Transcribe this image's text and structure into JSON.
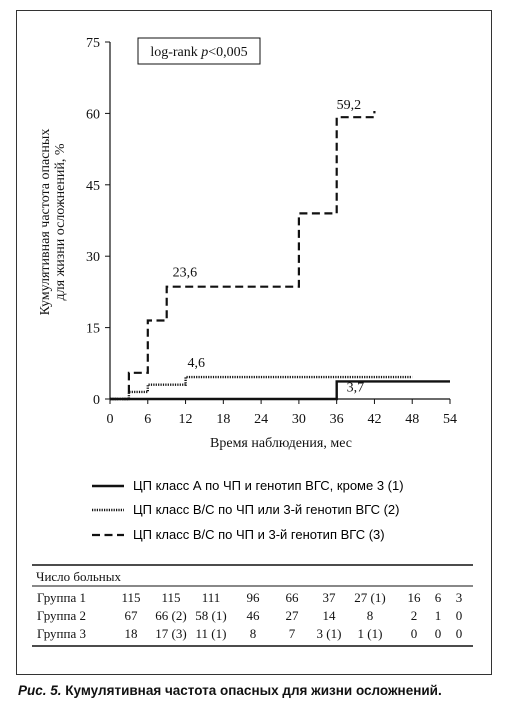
{
  "chart_data": {
    "type": "line",
    "step": true,
    "xlabel": "Время наблюдения, мес",
    "ylabel_line1": "Кумулятивная частота опасных",
    "ylabel_line2": "для жизни осложнений, %",
    "xlim": [
      0,
      54
    ],
    "ylim": [
      0,
      75
    ],
    "xticks": [
      "0",
      "6",
      "12",
      "18",
      "24",
      "30",
      "36",
      "42",
      "48",
      "54"
    ],
    "yticks": [
      "0",
      "15",
      "30",
      "45",
      "60",
      "75"
    ],
    "annotation": "log-rank p<0,005",
    "annotation_prefix": "log-rank ",
    "annotation_p": "p",
    "annotation_suffix": "<0,005",
    "series": [
      {
        "name": "ЦП класс А по ЧП и генотип ВГС, кроме 3 (1)",
        "style": "solid",
        "points": [
          [
            0,
            0
          ],
          [
            36,
            0
          ],
          [
            36,
            3.7
          ],
          [
            54,
            3.7
          ]
        ]
      },
      {
        "name": "ЦП класс В/С по ЧП или 3-й генотип ВГС (2)",
        "style": "dotted",
        "points": [
          [
            0,
            0
          ],
          [
            3,
            0
          ],
          [
            3,
            1.5
          ],
          [
            6,
            1.5
          ],
          [
            6,
            3
          ],
          [
            12,
            3
          ],
          [
            12,
            4.6
          ],
          [
            48,
            4.6
          ]
        ]
      },
      {
        "name": "ЦП класс В/С по ЧП и 3-й генотип ВГС (3)",
        "style": "dashed",
        "points": [
          [
            0,
            0
          ],
          [
            3,
            0
          ],
          [
            3,
            5.5
          ],
          [
            6,
            5.5
          ],
          [
            6,
            16.5
          ],
          [
            9,
            16.5
          ],
          [
            9,
            23.6
          ],
          [
            30,
            23.6
          ],
          [
            30,
            39
          ],
          [
            36,
            39
          ],
          [
            36,
            59.2
          ],
          [
            42,
            59.2
          ],
          [
            42,
            60.5
          ]
        ]
      }
    ],
    "data_labels": [
      {
        "text": "59,2",
        "x": 36,
        "y": 59.2
      },
      {
        "text": "23,6",
        "x": 9,
        "y": 23.6
      },
      {
        "text": "4,6",
        "x": 12,
        "y": 4.6
      },
      {
        "text": "3,7",
        "x": 36,
        "y": 3.7
      }
    ]
  },
  "risk_table": {
    "title": "Число больных",
    "rows": [
      {
        "label": "Группа 1",
        "values": [
          "115",
          "115",
          "111",
          "96",
          "66",
          "37",
          "27 (1)",
          "16",
          "6",
          "3"
        ]
      },
      {
        "label": "Группа 2",
        "values": [
          "67",
          "66 (2)",
          "58 (1)",
          "46",
          "27",
          "14",
          "8",
          "2",
          "1",
          "0"
        ]
      },
      {
        "label": "Группа 3",
        "values": [
          "18",
          "17 (3)",
          "11 (1)",
          "8",
          "7",
          "3 (1)",
          "1 (1)",
          "0",
          "0",
          "0"
        ]
      }
    ]
  },
  "caption": {
    "label": "Рис. 5.",
    "text": "Кумулятивная частота опасных для жизни осложнений."
  }
}
